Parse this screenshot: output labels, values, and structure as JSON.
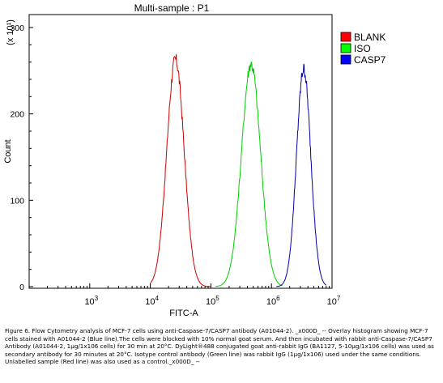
{
  "chart_data": {
    "type": "line",
    "title": "Multi-sample : P1",
    "xlabel": "FITC-A",
    "ylabel": "Count",
    "y_multiplier": "(x 10¹)",
    "x_scale": "log",
    "xlim": [
      100,
      10000000
    ],
    "ylim": [
      0,
      300
    ],
    "x_ticks": [
      {
        "value": 1000,
        "base": "10",
        "exp": "3"
      },
      {
        "value": 10000,
        "base": "10",
        "exp": "4"
      },
      {
        "value": 100000,
        "base": "10",
        "exp": "5"
      },
      {
        "value": 1000000,
        "base": "10",
        "exp": "6"
      },
      {
        "value": 10000000,
        "base": "10",
        "exp": "7"
      }
    ],
    "y_ticks": [
      {
        "value": 0,
        "label": "0"
      },
      {
        "value": 100,
        "label": "100"
      },
      {
        "value": 200,
        "label": "200"
      },
      {
        "value": 300,
        "label": "300"
      }
    ],
    "grid": false,
    "legend_position": "top-right",
    "series": [
      {
        "name": "BLANK",
        "color": "#cc0000",
        "legend_color": "#ff0000",
        "peak_x": 26000,
        "peak_y": 263,
        "x_start": 10000,
        "x_end": 100000
      },
      {
        "name": "ISO",
        "color": "#00cc00",
        "legend_color": "#00ff00",
        "peak_x": 460000,
        "peak_y": 258,
        "x_start": 120000,
        "x_end": 1500000
      },
      {
        "name": "CASP7",
        "color": "#0000aa",
        "legend_color": "#0000ff",
        "peak_x": 3400000,
        "peak_y": 252,
        "x_start": 1200000,
        "x_end": 8000000
      }
    ]
  },
  "caption": {
    "text": "Figure 6. Flow Cytometry analysis of MCF-7 cells using anti-Caspase-7/CASP7 antibody (A01044-2). _x000D_ -- Overlay histogram showing MCF-7 cells stained with A01044-2 (Blue line).The cells were blocked with 10% normal goat serum. And then incubated with rabbit anti-Caspase-7/CASP7 Antibody (A01044-2, 1μg/1x106 cells) for 30 min at 20°C. DyLight®488 conjugated goat anti-rabbit IgG (BA1127, 5-10μg/1x106 cells) was used as secondary antibody for 30 minutes at 20°C. Isotype control antibody (Green line) was rabbit IgG (1μg/1x106) used under the same conditions. Unlabelled sample (Red line) was also used as a control._x000D_ --"
  }
}
